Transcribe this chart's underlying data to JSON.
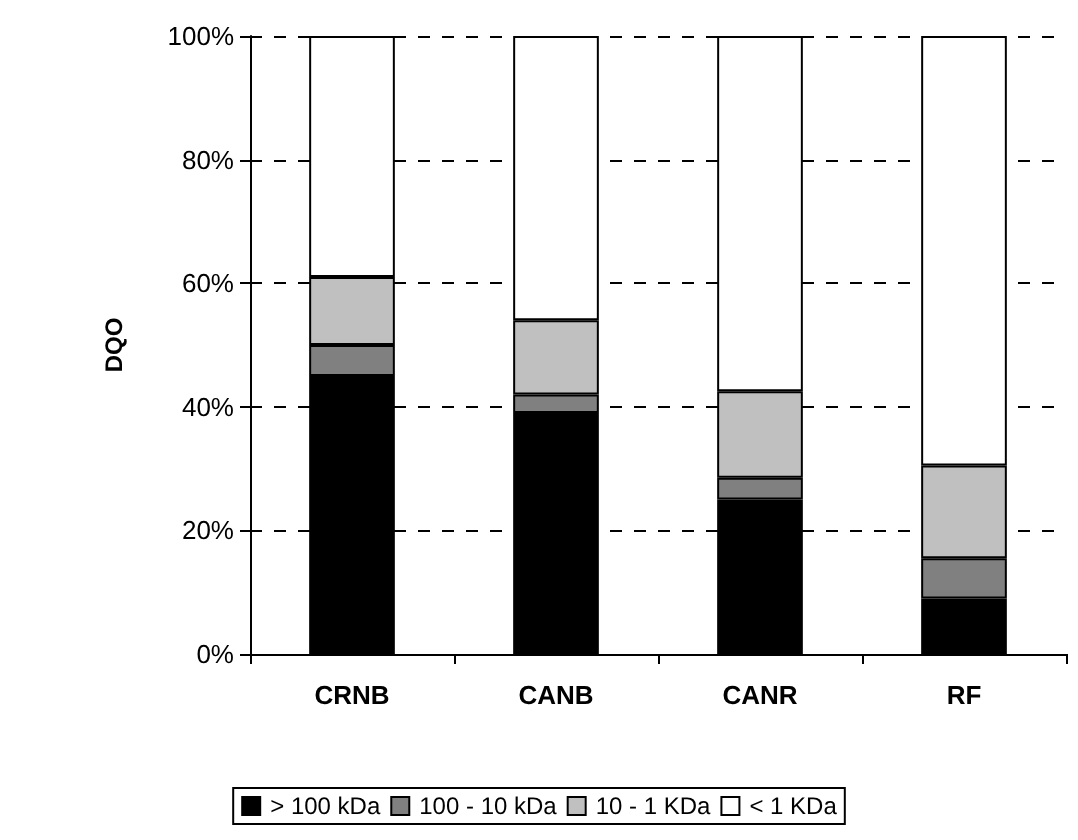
{
  "chart_data": {
    "type": "bar",
    "stacked": true,
    "ylabel": "DQO",
    "categories": [
      "CRNB",
      "CANB",
      "CANR",
      "RF"
    ],
    "series": [
      {
        "name": "> 100 kDa",
        "color": "#000000",
        "values": [
          45,
          39,
          25,
          9
        ]
      },
      {
        "name": "100 - 10 kDa",
        "color": "#808080",
        "values": [
          5,
          3,
          3.5,
          6.5
        ]
      },
      {
        "name": "10 - 1 KDa",
        "color": "#c0c0c0",
        "values": [
          11,
          12,
          14,
          15
        ]
      },
      {
        "name": "< 1 KDa",
        "color": "#ffffff",
        "values": [
          39,
          46,
          57.5,
          69.5
        ]
      }
    ],
    "ylim": [
      0,
      100
    ],
    "yticks": [
      {
        "value": 0,
        "label": "0%"
      },
      {
        "value": 20,
        "label": "20%"
      },
      {
        "value": 40,
        "label": "40%"
      },
      {
        "value": 60,
        "label": "60%"
      },
      {
        "value": 80,
        "label": "80%"
      },
      {
        "value": 100,
        "label": "100%"
      }
    ],
    "grid": "y",
    "legend": "bottom"
  }
}
